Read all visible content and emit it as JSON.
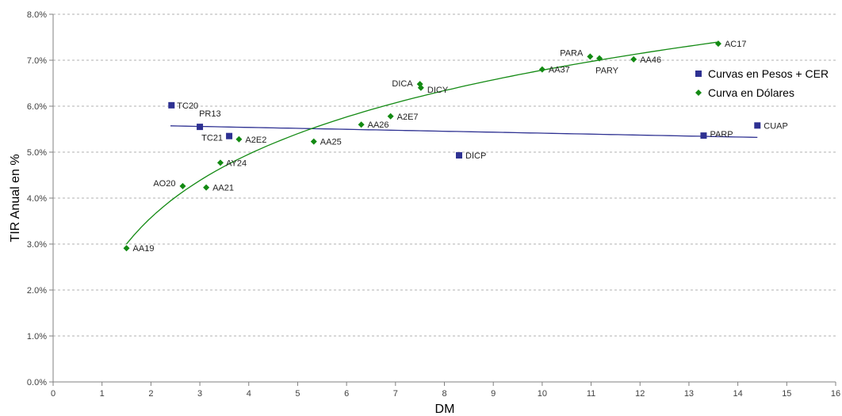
{
  "chart_data": {
    "type": "scatter",
    "xlabel": "DM",
    "ylabel": "TIR Anual en %",
    "xlim": [
      0,
      16
    ],
    "ylim": [
      0,
      8
    ],
    "x_ticks": [
      "0",
      "1",
      "2",
      "3",
      "4",
      "5",
      "6",
      "7",
      "8",
      "9",
      "10",
      "11",
      "12",
      "13",
      "14",
      "15",
      "16"
    ],
    "y_ticks": [
      "0.0%",
      "1.0%",
      "2.0%",
      "3.0%",
      "4.0%",
      "5.0%",
      "6.0%",
      "7.0%",
      "8.0%"
    ],
    "grid": "horizontal dashed",
    "legend_position": "right",
    "series": [
      {
        "name": "Curvas en Pesos + CER",
        "marker": "square",
        "color": "#2E3192",
        "trendline": {
          "type": "linear",
          "from": 2.4,
          "to": 14.4,
          "color": "#2E3192"
        },
        "points": [
          {
            "label": "TC20",
            "x": 2.42,
            "y": 6.02
          },
          {
            "label": "PR13",
            "x": 3.0,
            "y": 5.55
          },
          {
            "label": "TC21",
            "x": 3.6,
            "y": 5.35
          },
          {
            "label": "DICP",
            "x": 8.3,
            "y": 4.93
          },
          {
            "label": "PARP",
            "x": 13.3,
            "y": 5.36
          },
          {
            "label": "CUAP",
            "x": 14.4,
            "y": 5.58
          }
        ]
      },
      {
        "name": "Curva en Dólares",
        "marker": "diamond",
        "color": "#138A13",
        "trendline": {
          "type": "logarithmic",
          "from": 1.5,
          "to": 13.6,
          "color": "#138A13"
        },
        "points": [
          {
            "label": "AA19",
            "x": 1.5,
            "y": 2.91
          },
          {
            "label": "AO20",
            "x": 2.65,
            "y": 4.26
          },
          {
            "label": "AA21",
            "x": 3.13,
            "y": 4.23
          },
          {
            "label": "AY24",
            "x": 3.42,
            "y": 4.77
          },
          {
            "label": "A2E2",
            "x": 3.8,
            "y": 5.28
          },
          {
            "label": "AA25",
            "x": 5.33,
            "y": 5.23
          },
          {
            "label": "AA26",
            "x": 6.3,
            "y": 5.6
          },
          {
            "label": "A2E7",
            "x": 6.9,
            "y": 5.78
          },
          {
            "label": "DICA",
            "x": 7.5,
            "y": 6.48
          },
          {
            "label": "DICY",
            "x": 7.52,
            "y": 6.4
          },
          {
            "label": "AA37",
            "x": 10.0,
            "y": 6.8
          },
          {
            "label": "PARA",
            "x": 10.98,
            "y": 7.08
          },
          {
            "label": "PARY",
            "x": 11.17,
            "y": 7.04
          },
          {
            "label": "AA46",
            "x": 11.87,
            "y": 7.02
          },
          {
            "label": "AC17",
            "x": 13.6,
            "y": 7.36
          }
        ]
      }
    ]
  }
}
